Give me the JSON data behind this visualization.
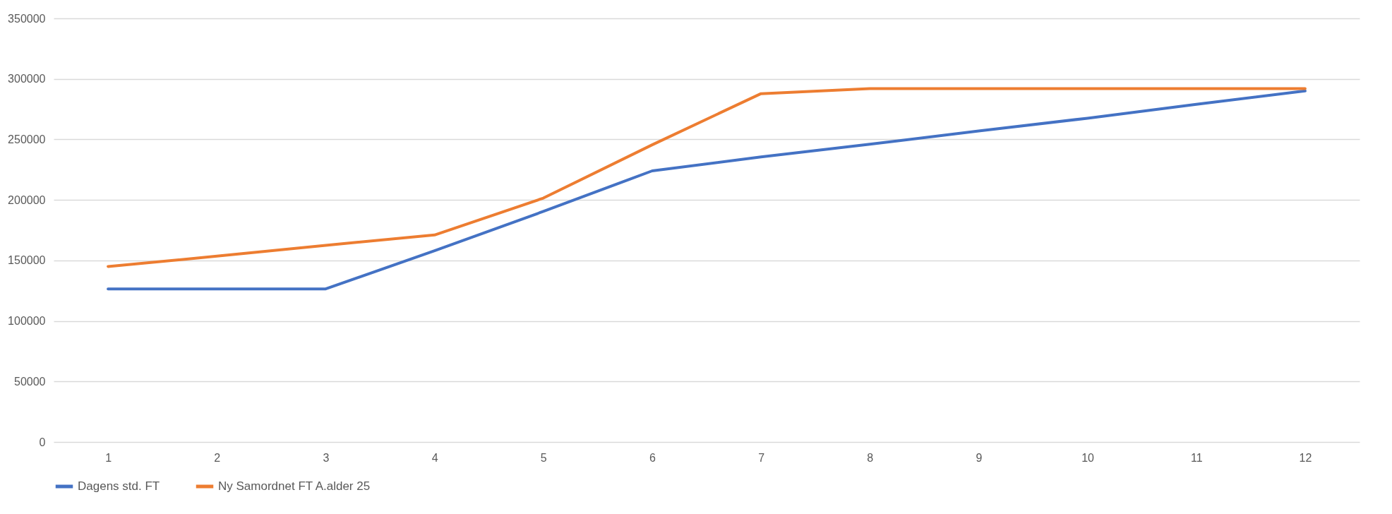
{
  "chart_data": {
    "type": "line",
    "categories": [
      "1",
      "2",
      "3",
      "4",
      "5",
      "6",
      "7",
      "8",
      "9",
      "10",
      "11",
      "12"
    ],
    "series": [
      {
        "name": "Dagens std. FT",
        "color": "#4472c4",
        "values": [
          126500,
          126500,
          126500,
          158000,
          190500,
          224000,
          235500,
          246000,
          257000,
          267500,
          279000,
          290000
        ]
      },
      {
        "name": "Ny Samordnet FT A.alder 25",
        "color": "#ed7d31",
        "values": [
          145000,
          153500,
          162500,
          171000,
          201500,
          245500,
          287800,
          292000,
          292000,
          292000,
          292000,
          292000
        ]
      }
    ],
    "ylim": [
      0,
      350000
    ],
    "yticks": [
      0,
      50000,
      100000,
      150000,
      200000,
      250000,
      300000,
      350000
    ],
    "grid": "y",
    "legend": "bottom",
    "marker": "none",
    "line_style": "solid"
  }
}
